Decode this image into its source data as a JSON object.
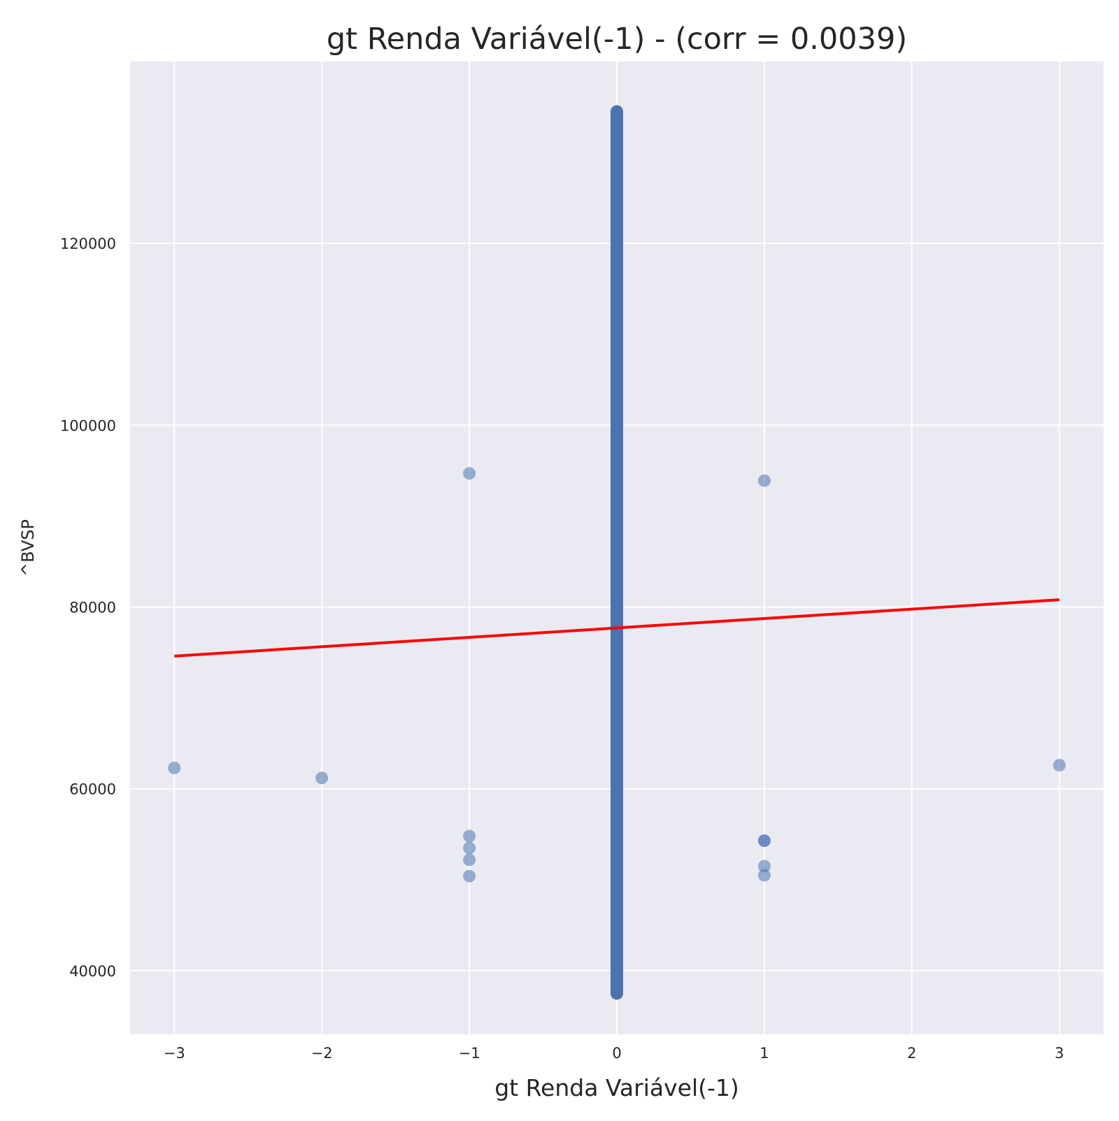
{
  "chart_data": {
    "type": "scatter",
    "title": "gt Renda Variável(-1) - (corr = 0.0039)",
    "xlabel": "gt Renda Variável(-1)",
    "ylabel": "^BVSP",
    "xlim": [
      -3.3,
      3.3
    ],
    "ylim": [
      33000,
      140000
    ],
    "xticks": [
      -3,
      -2,
      -1,
      0,
      1,
      2,
      3
    ],
    "xtick_labels": [
      "−3",
      "−2",
      "−1",
      "0",
      "1",
      "2",
      "3"
    ],
    "yticks": [
      40000,
      60000,
      80000,
      100000,
      120000
    ],
    "ytick_labels": [
      "40000",
      "60000",
      "80000",
      "100000",
      "120000"
    ],
    "grid": true,
    "colors": {
      "background": "#eaeaf2",
      "grid": "#ffffff",
      "points": "#4c72b0",
      "fit_line": "#ff0000"
    },
    "points": [
      {
        "x": -3,
        "y": 62300
      },
      {
        "x": -2,
        "y": 61200
      },
      {
        "x": -1,
        "y": 94700
      },
      {
        "x": -1,
        "y": 54800
      },
      {
        "x": -1,
        "y": 53500
      },
      {
        "x": -1,
        "y": 52200
      },
      {
        "x": -1,
        "y": 50400
      },
      {
        "x": 1,
        "y": 93900
      },
      {
        "x": 1,
        "y": 54300
      },
      {
        "x": 1,
        "y": 54300
      },
      {
        "x": 1,
        "y": 51500
      },
      {
        "x": 1,
        "y": 50500
      },
      {
        "x": 3,
        "y": 62600
      }
    ],
    "dense_band": {
      "x": 0,
      "y_min": 37500,
      "y_max": 134500
    },
    "regression_line": {
      "x": [
        -3,
        3
      ],
      "y": [
        74600,
        80800
      ]
    }
  }
}
